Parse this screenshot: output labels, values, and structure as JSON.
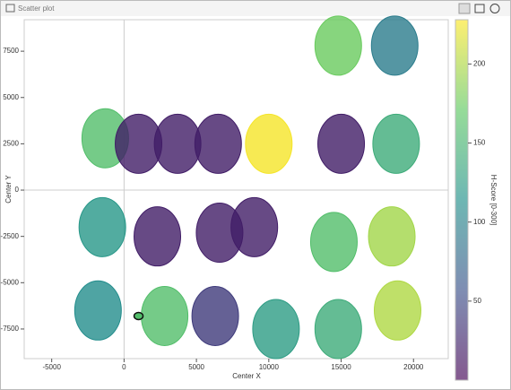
{
  "chart_data": {
    "type": "scatter",
    "title": "Scatter plot",
    "xlabel": "Center X",
    "ylabel": "Center Y",
    "colorbar_label": "H-Score [0-300]",
    "colormap": "viridis",
    "x": [
      -1300,
      1000,
      3700,
      6500,
      10000,
      15000,
      18800,
      14800,
      18700,
      -1500,
      2300,
      6600,
      9000,
      14500,
      18500,
      -1800,
      2800,
      6300,
      10500,
      14800,
      18900,
      1000
    ],
    "y": [
      2800,
      2500,
      2500,
      2500,
      2500,
      2500,
      2500,
      7800,
      7800,
      -2000,
      -2500,
      -2300,
      -2000,
      -2800,
      -2500,
      -6500,
      -6800,
      -6800,
      -7500,
      -7500,
      -6500,
      -6800
    ],
    "color_values": [
      160,
      20,
      20,
      20,
      225,
      20,
      140,
      175,
      95,
      120,
      20,
      20,
      20,
      160,
      195,
      110,
      160,
      40,
      125,
      140,
      200,
      160
    ],
    "xlim": [
      -6900,
      22400
    ],
    "ylim": [
      -9100,
      9200
    ],
    "xticks": [
      -5000,
      0,
      5000,
      10000,
      15000,
      20000
    ],
    "yticks": [
      -7500,
      -5000,
      -2500,
      0,
      2500,
      5000,
      7500
    ],
    "clim": [
      0,
      228
    ],
    "cticks": [
      50,
      100,
      150,
      200
    ],
    "zero_lines": true
  }
}
